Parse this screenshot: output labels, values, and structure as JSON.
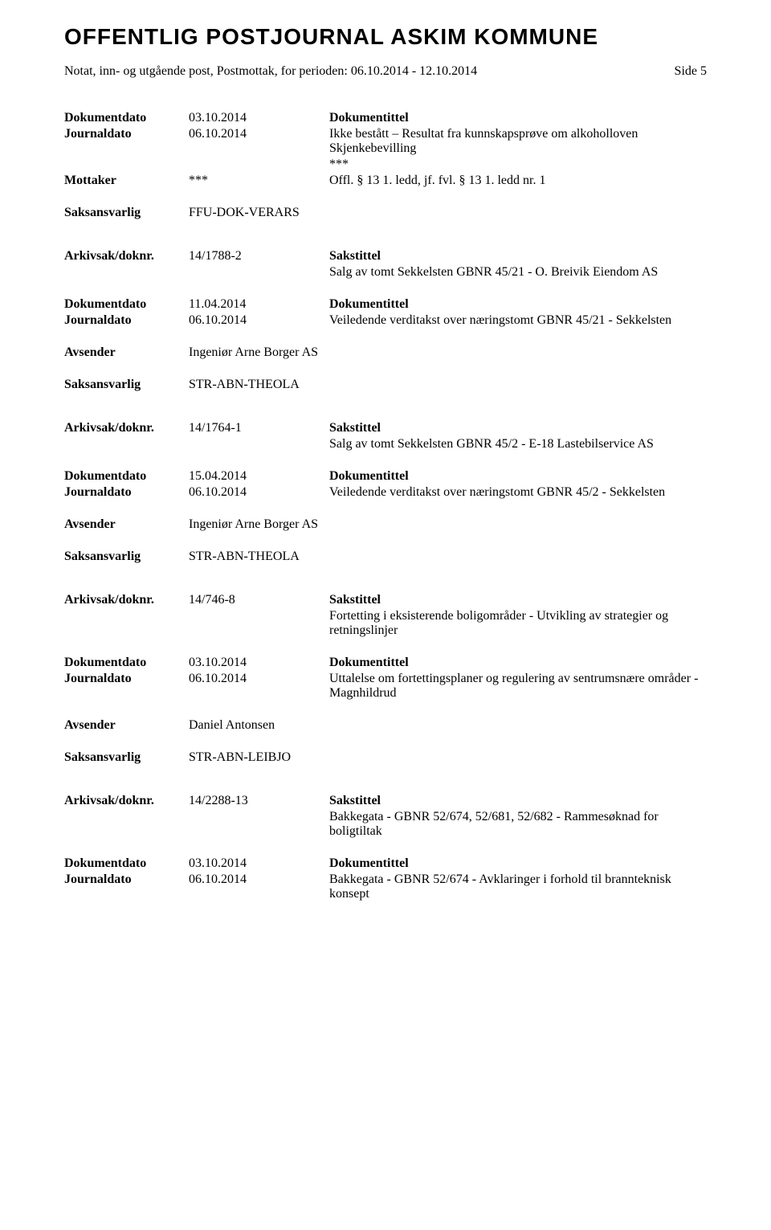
{
  "mainTitle": "OFFENTLIG POSTJOURNAL ASKIM KOMMUNE",
  "subtitle": "Notat, inn- og utgående post, Postmottak, for perioden: 06.10.2014 - 12.10.2014",
  "pageIndicator": "Side 5",
  "labels": {
    "dokumentdato": "Dokumentdato",
    "journaldato": "Journaldato",
    "mottaker": "Mottaker",
    "avsender": "Avsender",
    "saksansvarlig": "Saksansvarlig",
    "arkivsak": "Arkivsak/doknr.",
    "dokumentittel": "Dokumentittel",
    "sakstittel": "Sakstittel"
  },
  "entries": [
    {
      "dokumentdato": "03.10.2014",
      "journaldato": "06.10.2014",
      "dokumentittel": "Ikke bestått – Resultat fra kunnskapsprøve om alkoholloven Skjenkebevilling",
      "mottakerLeft": "***",
      "mottakerRight": "***",
      "mottakerExtra": "Offl. § 13 1. ledd, jf. fvl. § 13 1. ledd nr. 1",
      "saksansvarlig": "FFU-DOK-VERARS"
    },
    {
      "arkivsak": "14/1788-2",
      "sakstittel": "Salg av tomt Sekkelsten GBNR 45/21 - O. Breivik Eiendom AS",
      "dokumentdato": "11.04.2014",
      "journaldato": "06.10.2014",
      "dokumentittel": "Veiledende verditakst over næringstomt GBNR 45/21 - Sekkelsten",
      "avsender": "Ingeniør Arne Borger AS",
      "saksansvarlig": "STR-ABN-THEOLA"
    },
    {
      "arkivsak": "14/1764-1",
      "sakstittel": "Salg av tomt Sekkelsten GBNR 45/2 - E-18 Lastebilservice AS",
      "dokumentdato": "15.04.2014",
      "journaldato": "06.10.2014",
      "dokumentittel": "Veiledende verditakst over næringstomt GBNR 45/2 - Sekkelsten",
      "avsender": "Ingeniør Arne Borger AS",
      "saksansvarlig": "STR-ABN-THEOLA"
    },
    {
      "arkivsak": "14/746-8",
      "sakstittel": "Fortetting i eksisterende boligområder - Utvikling av strategier og retningslinjer",
      "dokumentdato": "03.10.2014",
      "journaldato": "06.10.2014",
      "dokumentittel": "Uttalelse om fortettingsplaner og regulering av sentrumsnære områder - Magnhildrud",
      "avsender": "Daniel Antonsen",
      "saksansvarlig": "STR-ABN-LEIBJO"
    },
    {
      "arkivsak": "14/2288-13",
      "sakstittel": "Bakkegata - GBNR 52/674, 52/681, 52/682 - Rammesøknad for boligtiltak",
      "dokumentdato": "03.10.2014",
      "journaldato": "06.10.2014",
      "dokumentittel": "Bakkegata - GBNR 52/674 - Avklaringer i forhold til brannteknisk konsept"
    }
  ]
}
